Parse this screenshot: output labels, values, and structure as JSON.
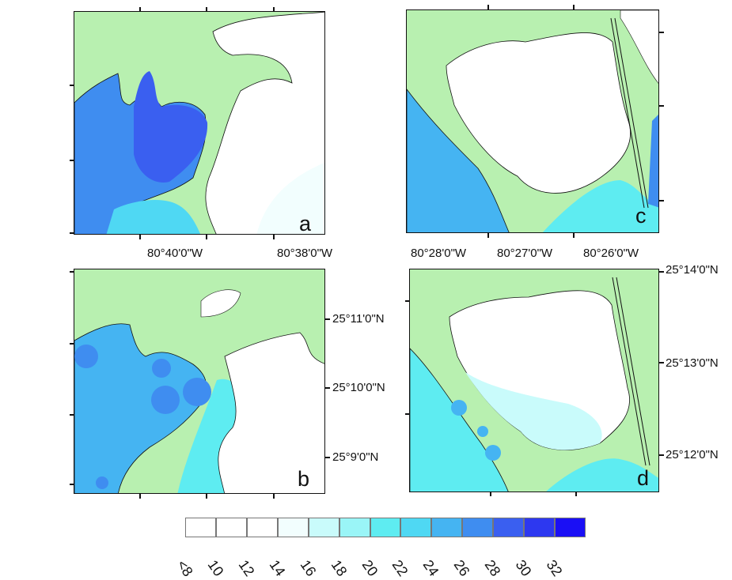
{
  "panels": {
    "a": {
      "label": "a"
    },
    "b": {
      "label": "b"
    },
    "c": {
      "label": "c"
    },
    "d": {
      "label": "d"
    }
  },
  "longitudes_left": [
    "80°40'0\"W",
    "80°38'0\"W"
  ],
  "longitudes_right": [
    "80°28'0\"W",
    "80°27'0\"W",
    "80°26'0\"W"
  ],
  "latitudes_left": [
    "25°11'0\"N",
    "25°10'0\"N",
    "25°9'0\"N"
  ],
  "latitudes_right": [
    "25°14'0\"N",
    "25°13'0\"N",
    "25°12'0\"N"
  ],
  "legend": {
    "labels": [
      "<8",
      "10",
      "12",
      "14",
      "16",
      "18",
      "20",
      "22",
      "24",
      "26",
      "28",
      "30",
      "32"
    ],
    "colors": [
      "#ffffff",
      "#ffffff",
      "#ffffff",
      "#f2fefe",
      "#c9fbfb",
      "#9af5f7",
      "#5eecf1",
      "#4fd8f3",
      "#45b4f2",
      "#3f8df0",
      "#3a5ff0",
      "#2d38f0",
      "#1a0ff5"
    ]
  },
  "colors": {
    "land": "#b8f0b0",
    "outline": "#111111"
  }
}
